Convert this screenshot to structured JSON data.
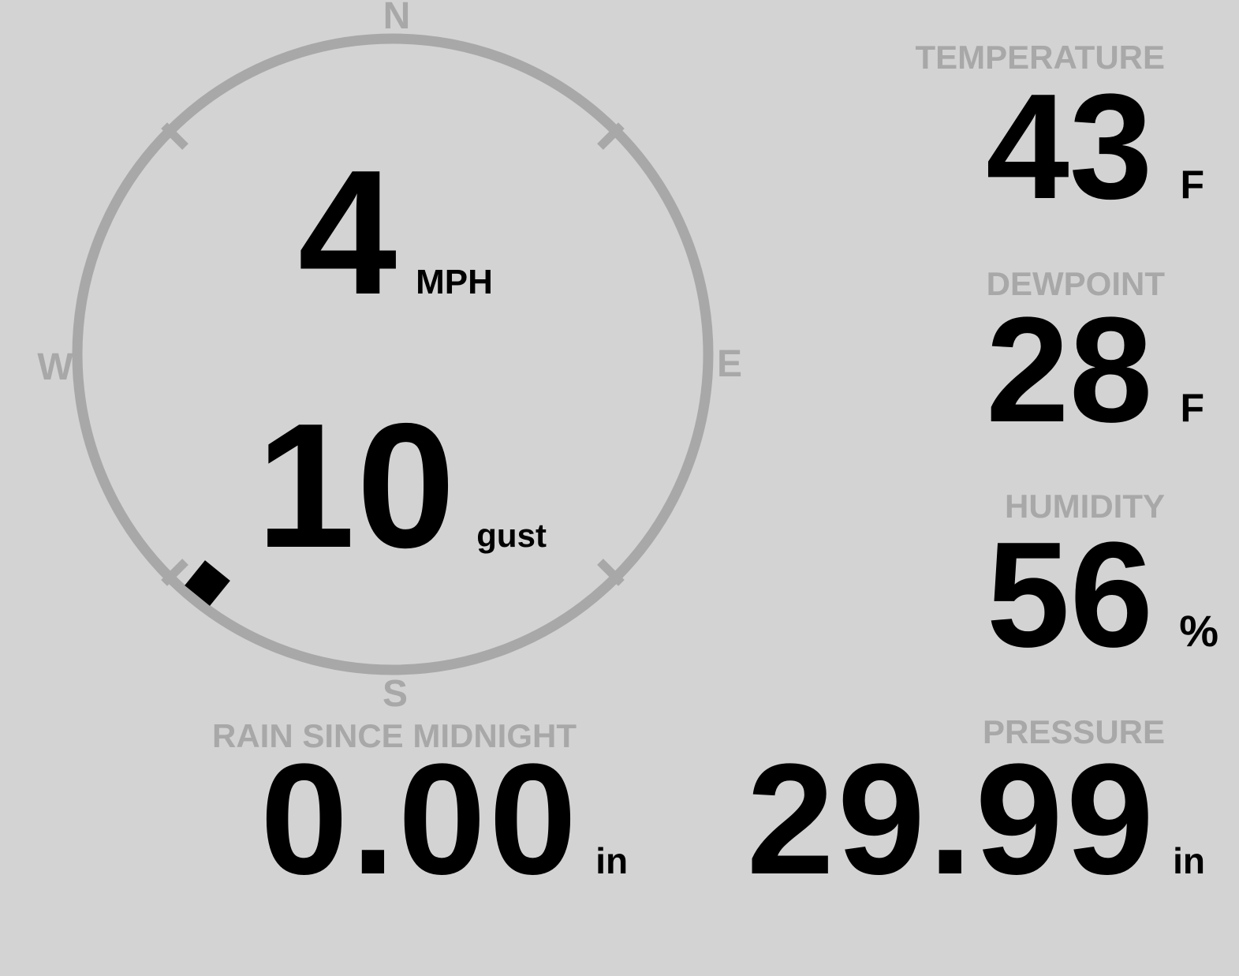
{
  "colors": {
    "background": "#d3d3d3",
    "muted_gray": "#a8a8a8",
    "value_black": "#000000"
  },
  "wind": {
    "speed": "4",
    "speed_unit": "MPH",
    "gust": "10",
    "gust_unit": "gust",
    "direction_deg": 219,
    "compass": {
      "north": "N",
      "east": "E",
      "south": "S",
      "west": "W"
    }
  },
  "metrics": {
    "temperature": {
      "label": "TEMPERATURE",
      "value": "43",
      "unit": "F"
    },
    "dewpoint": {
      "label": "DEWPOINT",
      "value": "28",
      "unit": "F"
    },
    "humidity": {
      "label": "HUMIDITY",
      "value": "56",
      "unit": "%"
    },
    "rain_since_midnight": {
      "label": "RAIN SINCE MIDNIGHT",
      "value": "0.00",
      "unit": "in"
    },
    "pressure": {
      "label": "PRESSURE",
      "value": "29.99",
      "unit": "in"
    }
  }
}
